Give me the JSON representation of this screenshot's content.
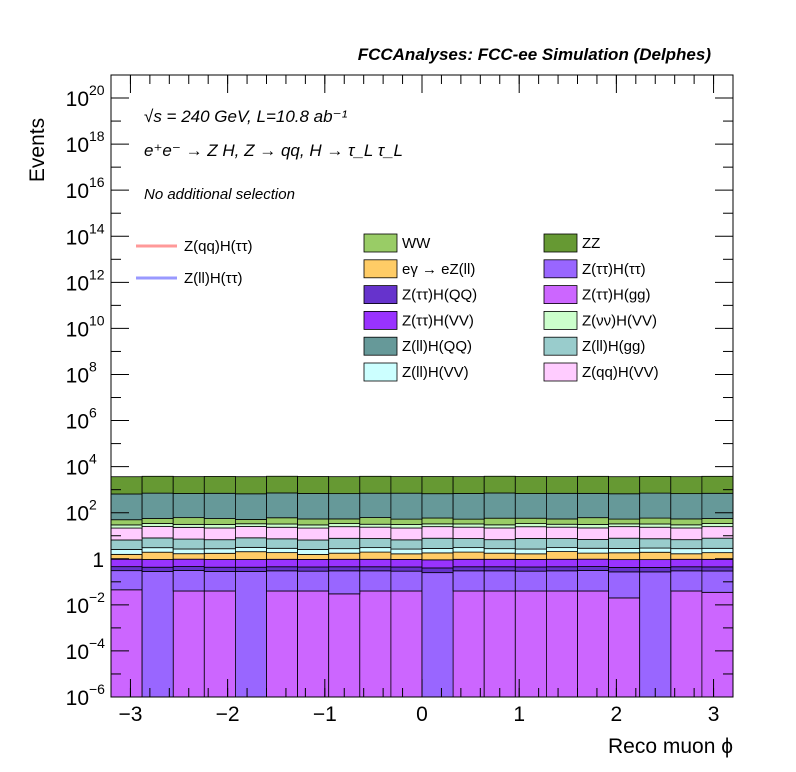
{
  "chart_data": {
    "type": "bar",
    "stacked": true,
    "title": "FCCAnalyses: FCC-ee Simulation (Delphes)",
    "annotations": [
      "√s = 240 GeV, L=10.8 ab⁻¹",
      "e⁺e⁻ → Z H, Z → qq, H → τ_L τ_L",
      "No additional selection"
    ],
    "xlabel": "Reco muon ϕ",
    "ylabel": "Events",
    "xlim": [
      -3.2,
      3.2
    ],
    "ylim": [
      1e-06,
      1e+21
    ],
    "yscale": "log",
    "grid": false,
    "x_ticks": [
      -3,
      -2,
      -1,
      0,
      1,
      2,
      3
    ],
    "x_tick_labels": [
      "−3",
      "−2",
      "−1",
      "0",
      "1",
      "2",
      "3"
    ],
    "y_ticks": [
      {
        "exp": -6,
        "label": "10",
        "sup": "−6"
      },
      {
        "exp": -4,
        "label": "10",
        "sup": "−4"
      },
      {
        "exp": -2,
        "label": "10",
        "sup": "−2"
      },
      {
        "exp": 0,
        "label": "1",
        "sup": ""
      },
      {
        "exp": 2,
        "label": "10",
        "sup": "2"
      },
      {
        "exp": 4,
        "label": "10",
        "sup": "4"
      },
      {
        "exp": 6,
        "label": "10",
        "sup": "6"
      },
      {
        "exp": 8,
        "label": "10",
        "sup": "8"
      },
      {
        "exp": 10,
        "label": "10",
        "sup": "10"
      },
      {
        "exp": 12,
        "label": "10",
        "sup": "12"
      },
      {
        "exp": 14,
        "label": "10",
        "sup": "14"
      },
      {
        "exp": 16,
        "label": "10",
        "sup": "16"
      },
      {
        "exp": 18,
        "label": "10",
        "sup": "18"
      },
      {
        "exp": 20,
        "label": "10",
        "sup": "20"
      }
    ],
    "bin_edges": [
      -3.2,
      -2.88,
      -2.56,
      -2.24,
      -1.92,
      -1.6,
      -1.28,
      -0.96,
      -0.64,
      -0.32,
      0.0,
      0.32,
      0.64,
      0.96,
      1.28,
      1.6,
      1.92,
      2.24,
      2.56,
      2.88,
      3.2
    ],
    "series": [
      {
        "name": "Z(ττ)H(gg)",
        "color": "#cc66ff",
        "values": [
          0.045,
          1e-07,
          0.04,
          0.04,
          1e-07,
          0.04,
          0.04,
          0.03,
          0.04,
          0.04,
          1e-07,
          0.04,
          0.04,
          0.04,
          0.04,
          0.04,
          0.02,
          1e-07,
          0.04,
          0.035
        ]
      },
      {
        "name": "Z(ττ)H(ττ)",
        "color": "#9966ff",
        "values": [
          0.26,
          0.28,
          0.27,
          0.24,
          0.28,
          0.26,
          0.25,
          0.27,
          0.26,
          0.25,
          0.25,
          0.26,
          0.26,
          0.25,
          0.26,
          0.27,
          0.25,
          0.27,
          0.26,
          0.26
        ]
      },
      {
        "name": "Z(ττ)H(QQ)",
        "color": "#6633cc",
        "values": [
          0.15,
          0.15,
          0.15,
          0.15,
          0.15,
          0.15,
          0.15,
          0.15,
          0.15,
          0.15,
          0.15,
          0.15,
          0.15,
          0.15,
          0.15,
          0.15,
          0.15,
          0.15,
          0.15,
          0.15
        ]
      },
      {
        "name": "Z(ττ)H(VV)",
        "color": "#9933ff",
        "values": [
          0.5,
          0.5,
          0.5,
          0.5,
          0.5,
          0.5,
          0.5,
          0.5,
          0.5,
          0.5,
          0.5,
          0.5,
          0.5,
          0.5,
          0.5,
          0.5,
          0.5,
          0.5,
          0.5,
          0.5
        ]
      },
      {
        "name": "eγ → eZ(ll)",
        "color": "#ffcc66",
        "values": [
          0.6,
          1.0,
          0.7,
          0.8,
          1.1,
          0.9,
          0.6,
          0.8,
          1.0,
          0.7,
          0.9,
          1.0,
          0.8,
          0.7,
          1.1,
          0.8,
          0.9,
          1.0,
          0.7,
          0.9
        ]
      },
      {
        "name": "Z(ll)H(VV)",
        "color": "#ccffff",
        "values": [
          1.0,
          1.1,
          1.0,
          1.0,
          1.1,
          1.0,
          1.0,
          1.0,
          1.1,
          1.0,
          1.0,
          1.1,
          1.0,
          1.0,
          1.0,
          1.1,
          1.0,
          1.0,
          1.1,
          1.0
        ]
      },
      {
        "name": "Z(ll)H(gg)",
        "color": "#99cccc",
        "values": [
          4,
          5,
          4.5,
          4,
          5,
          4.5,
          4,
          5,
          4.5,
          4,
          5,
          4.5,
          4,
          5,
          4.5,
          4,
          5,
          4.5,
          4,
          5
        ]
      },
      {
        "name": "Z(qq)H(VV)",
        "color": "#ffccff",
        "values": [
          15,
          17,
          16,
          15,
          17,
          16,
          15,
          17,
          16,
          15,
          17,
          16,
          15,
          17,
          16,
          15,
          17,
          16,
          15,
          17
        ]
      },
      {
        "name": "Z(νν)H(VV)",
        "color": "#ccffcc",
        "values": [
          8,
          9,
          8,
          9,
          8,
          9,
          8,
          9,
          8,
          9,
          8,
          9,
          8,
          9,
          8,
          9,
          8,
          9,
          8,
          9
        ]
      },
      {
        "name": "WW",
        "color": "#99cc66",
        "values": [
          20,
          22,
          30,
          25,
          18,
          28,
          24,
          20,
          30,
          22,
          26,
          20,
          28,
          24,
          22,
          30,
          20,
          26,
          24,
          22
        ]
      },
      {
        "name": "Z(ll)H(QQ)",
        "color": "#669999",
        "values": [
          600,
          650,
          620,
          640,
          610,
          660,
          630,
          620,
          640,
          650,
          610,
          630,
          660,
          620,
          640,
          630,
          610,
          650,
          620,
          640
        ]
      },
      {
        "name": "ZZ",
        "color": "#669933",
        "values": [
          3000,
          3100,
          3000,
          3050,
          3000,
          3100,
          3050,
          3000,
          3100,
          3000,
          3050,
          3000,
          3100,
          3050,
          3000,
          3100,
          3000,
          3050,
          3000,
          3100
        ]
      }
    ],
    "lines": [
      {
        "name": "Z(qq)H(ττ)",
        "color": "#ff9999"
      },
      {
        "name": "Z(ll)H(ττ)",
        "color": "#9999ff"
      }
    ],
    "legend_lines": [
      {
        "name": "Z(qq)H(ττ)",
        "color": "#ff9999"
      },
      {
        "name": "Z(ll)H(ττ)",
        "color": "#9999ff"
      }
    ],
    "legend_fills": [
      {
        "name": "WW",
        "color": "#99cc66"
      },
      {
        "name": "ZZ",
        "color": "#669933"
      },
      {
        "name": "eγ → eZ(ll)",
        "color": "#ffcc66"
      },
      {
        "name": "Z(ττ)H(ττ)",
        "color": "#9966ff"
      },
      {
        "name": "Z(ττ)H(QQ)",
        "color": "#6633cc"
      },
      {
        "name": "Z(ττ)H(gg)",
        "color": "#cc66ff"
      },
      {
        "name": "Z(ττ)H(VV)",
        "color": "#9933ff"
      },
      {
        "name": "Z(νν)H(VV)",
        "color": "#ccffcc"
      },
      {
        "name": "Z(ll)H(QQ)",
        "color": "#669999"
      },
      {
        "name": "Z(ll)H(gg)",
        "color": "#99cccc"
      },
      {
        "name": "Z(ll)H(VV)",
        "color": "#ccffff"
      },
      {
        "name": "Z(qq)H(VV)",
        "color": "#ffccff"
      }
    ]
  }
}
